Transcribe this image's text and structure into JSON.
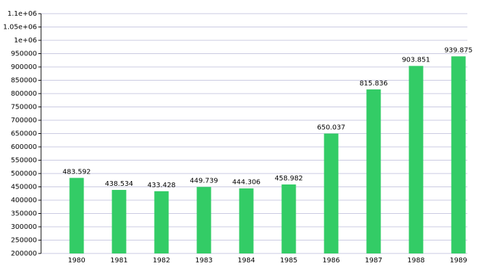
{
  "chart_data": {
    "type": "bar",
    "categories": [
      "1980",
      "1981",
      "1982",
      "1983",
      "1984",
      "1985",
      "1986",
      "1987",
      "1988",
      "1989"
    ],
    "values": [
      483592,
      438534,
      433428,
      449739,
      444306,
      458982,
      650037,
      815836,
      903851,
      939875
    ],
    "value_labels": [
      "483.592",
      "438.534",
      "433.428",
      "449.739",
      "444.306",
      "458.982",
      "650.037",
      "815.836",
      "903.851",
      "939.875"
    ],
    "color": "#33cc66",
    "ylim": [
      200000,
      1100000
    ],
    "yticks": [
      200000,
      250000,
      300000,
      350000,
      400000,
      450000,
      500000,
      550000,
      600000,
      650000,
      700000,
      750000,
      800000,
      850000,
      900000,
      950000,
      {
        "value": 1000000,
        "label": "1e+06"
      },
      {
        "value": 1050000,
        "label": "1.05e+06"
      },
      {
        "value": 1100000,
        "label": "1.1e+06"
      }
    ],
    "grid": true
  }
}
